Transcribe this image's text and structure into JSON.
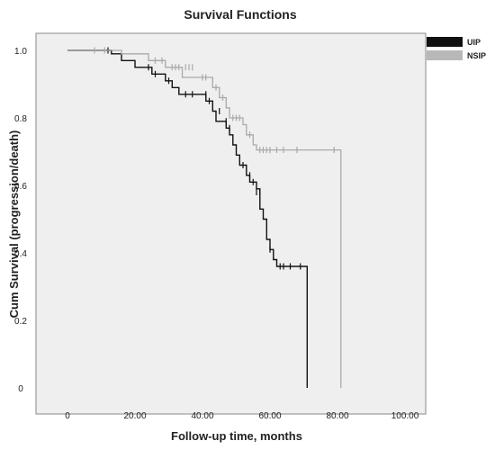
{
  "chart_data": {
    "type": "line",
    "title": "Survival Functions",
    "xlabel": "Follow-up time, months",
    "ylabel": "Cum Survival (progression/death)",
    "xlim": [
      0,
      100
    ],
    "ylim": [
      0,
      1.0
    ],
    "x_ticks": [
      "0",
      "20.00",
      "40.00",
      "60.00",
      "80.00",
      "100.00"
    ],
    "x_tick_values": [
      0,
      20,
      40,
      60,
      80,
      100
    ],
    "y_ticks": [
      "0",
      "0.2",
      "0.4",
      "0.6",
      "0.8",
      "1.0"
    ],
    "y_tick_values": [
      0,
      0.2,
      0.4,
      0.6,
      0.8,
      1.0
    ],
    "grid": false,
    "legend_position": "top-right",
    "series": [
      {
        "name": "UIP",
        "color": "#111111",
        "step": [
          [
            0,
            1.0
          ],
          [
            13,
            0.99
          ],
          [
            16,
            0.97
          ],
          [
            20,
            0.95
          ],
          [
            25,
            0.93
          ],
          [
            29,
            0.91
          ],
          [
            31,
            0.89
          ],
          [
            33,
            0.87
          ],
          [
            41,
            0.85
          ],
          [
            43,
            0.82
          ],
          [
            44,
            0.79
          ],
          [
            47,
            0.77
          ],
          [
            48,
            0.75
          ],
          [
            49,
            0.72
          ],
          [
            50,
            0.69
          ],
          [
            51,
            0.66
          ],
          [
            53,
            0.63
          ],
          [
            54,
            0.61
          ],
          [
            56,
            0.59
          ],
          [
            57,
            0.53
          ],
          [
            58,
            0.5
          ],
          [
            59,
            0.44
          ],
          [
            60,
            0.41
          ],
          [
            61,
            0.38
          ],
          [
            62,
            0.36
          ],
          [
            71,
            0.0
          ]
        ],
        "censored": [
          [
            12,
            1.0
          ],
          [
            24,
            0.95
          ],
          [
            26,
            0.93
          ],
          [
            30,
            0.91
          ],
          [
            35,
            0.87
          ],
          [
            37,
            0.87
          ],
          [
            41,
            0.87
          ],
          [
            42,
            0.85
          ],
          [
            45,
            0.82
          ],
          [
            47,
            0.79
          ],
          [
            48,
            0.77
          ],
          [
            52,
            0.66
          ],
          [
            54,
            0.63
          ],
          [
            55,
            0.61
          ],
          [
            56,
            0.58
          ],
          [
            57,
            0.58
          ],
          [
            60,
            0.41
          ],
          [
            63,
            0.36
          ],
          [
            64,
            0.36
          ],
          [
            66,
            0.36
          ],
          [
            69,
            0.36
          ]
        ]
      },
      {
        "name": "NSIP",
        "color": "#a9a9a9",
        "step": [
          [
            0,
            1.0
          ],
          [
            16,
            0.99
          ],
          [
            24,
            0.97
          ],
          [
            29,
            0.95
          ],
          [
            34,
            0.92
          ],
          [
            43,
            0.89
          ],
          [
            45,
            0.86
          ],
          [
            47,
            0.83
          ],
          [
            48,
            0.8
          ],
          [
            52,
            0.78
          ],
          [
            53,
            0.75
          ],
          [
            55,
            0.72
          ],
          [
            56,
            0.705
          ],
          [
            81,
            0.0
          ]
        ],
        "censored": [
          [
            8,
            1.0
          ],
          [
            11,
            1.0
          ],
          [
            26,
            0.97
          ],
          [
            28,
            0.97
          ],
          [
            31,
            0.95
          ],
          [
            32,
            0.95
          ],
          [
            33,
            0.95
          ],
          [
            35,
            0.95
          ],
          [
            36,
            0.95
          ],
          [
            37,
            0.95
          ],
          [
            40,
            0.92
          ],
          [
            41,
            0.92
          ],
          [
            44,
            0.89
          ],
          [
            46,
            0.86
          ],
          [
            49,
            0.8
          ],
          [
            50,
            0.8
          ],
          [
            51,
            0.8
          ],
          [
            54,
            0.75
          ],
          [
            57,
            0.705
          ],
          [
            58,
            0.705
          ],
          [
            59,
            0.705
          ],
          [
            60,
            0.705
          ],
          [
            62,
            0.705
          ],
          [
            64,
            0.705
          ],
          [
            68,
            0.705
          ],
          [
            79,
            0.705
          ]
        ]
      }
    ]
  }
}
